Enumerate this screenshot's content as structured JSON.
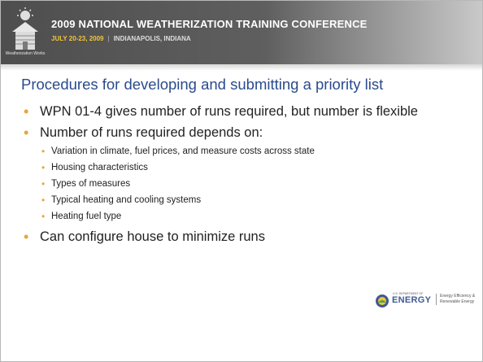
{
  "header": {
    "title": "2009 NATIONAL WEATHERIZATION TRAINING CONFERENCE",
    "dates": "JULY 20-23, 2009",
    "location": "INDIANAPOLIS, INDIANA",
    "logo_caption": "Weatherization Works"
  },
  "slide": {
    "title": "Procedures for developing and submitting a priority list",
    "bullets": [
      {
        "text": "WPN 01-4 gives number of runs required, but number is flexible",
        "sub": []
      },
      {
        "text": "Number of runs required depends on:",
        "sub": [
          "Variation in climate, fuel prices, and measure costs across state",
          "Housing characteristics",
          "Types of measures",
          "Typical heating and cooling systems",
          "Heating fuel type"
        ]
      },
      {
        "text": "Can configure house to minimize runs",
        "sub": []
      }
    ]
  },
  "footer": {
    "department": "U.S. DEPARTMENT OF",
    "energy": "ENERGY",
    "office": "Energy Efficiency & Renewable Energy"
  }
}
